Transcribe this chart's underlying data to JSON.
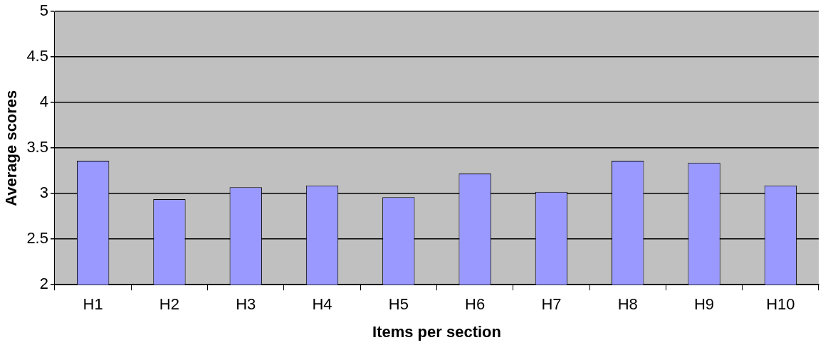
{
  "chart_data": {
    "type": "bar",
    "xlabel": "Items per section",
    "ylabel": "Average scores",
    "categories": [
      "H1",
      "H2",
      "H3",
      "H4",
      "H5",
      "H6",
      "H7",
      "H8",
      "H9",
      "H10"
    ],
    "series": [
      {
        "color": "#9999ff",
        "values": [
          3.36,
          2.94,
          3.07,
          3.09,
          2.96,
          3.22,
          3.02,
          3.36,
          3.34,
          3.09
        ]
      }
    ],
    "ylim": [
      2,
      5
    ],
    "yticks": [
      2,
      2.5,
      3,
      3.5,
      4,
      4.5,
      5
    ],
    "grid": "y",
    "legend": false
  }
}
